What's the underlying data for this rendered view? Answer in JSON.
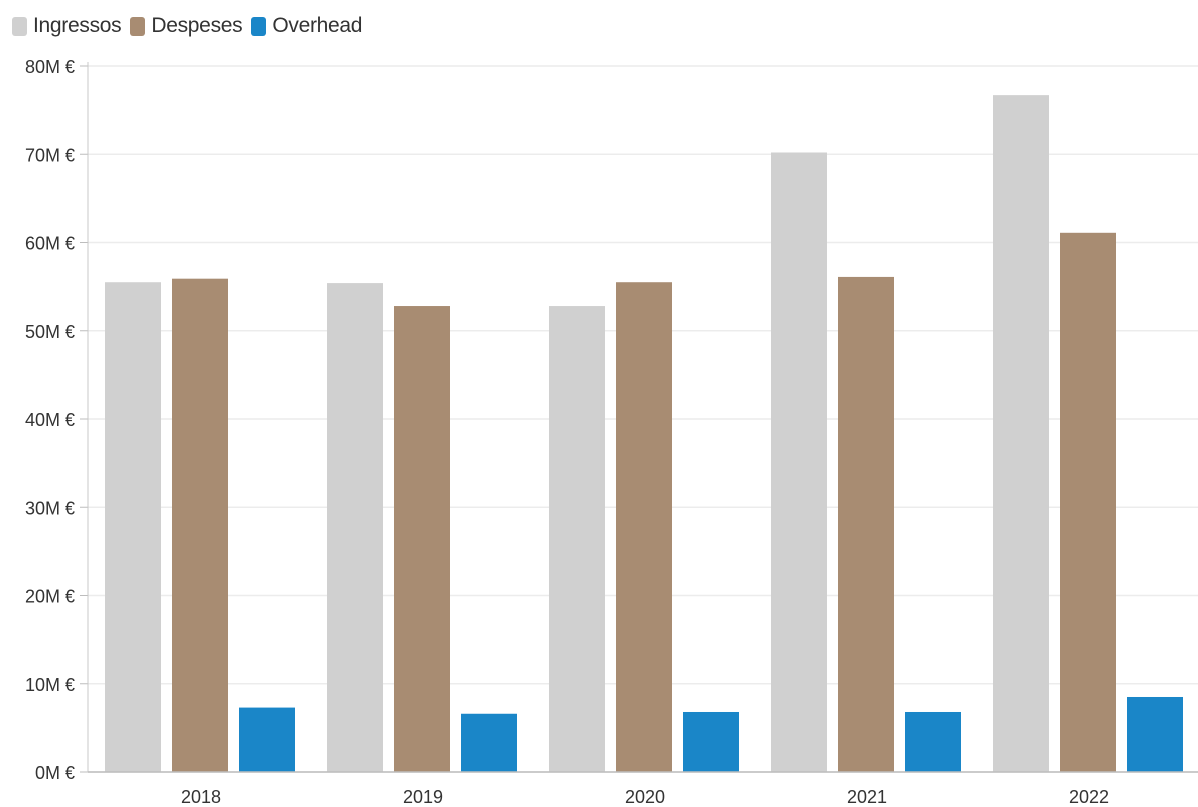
{
  "chart_data": {
    "type": "bar",
    "categories": [
      "2018",
      "2019",
      "2020",
      "2021",
      "2022"
    ],
    "series": [
      {
        "name": "Ingressos",
        "color": "#d0d0d0",
        "values": [
          55.5,
          55.4,
          52.8,
          70.2,
          76.7
        ]
      },
      {
        "name": "Despeses",
        "color": "#a88c72",
        "values": [
          55.9,
          52.8,
          55.5,
          56.1,
          61.1
        ]
      },
      {
        "name": "Overhead",
        "color": "#1a86c8",
        "values": [
          7.3,
          6.6,
          6.8,
          6.8,
          8.5
        ]
      }
    ],
    "ylim": [
      0,
      80
    ],
    "yticks": [
      0,
      10,
      20,
      30,
      40,
      50,
      60,
      70,
      80
    ],
    "ytick_labels": [
      "0M €",
      "10M €",
      "20M €",
      "30M €",
      "40M €",
      "50M €",
      "60M €",
      "70M €",
      "80M €"
    ],
    "unit_suffix": "M €",
    "legend_position": "top-left",
    "grid": true
  }
}
